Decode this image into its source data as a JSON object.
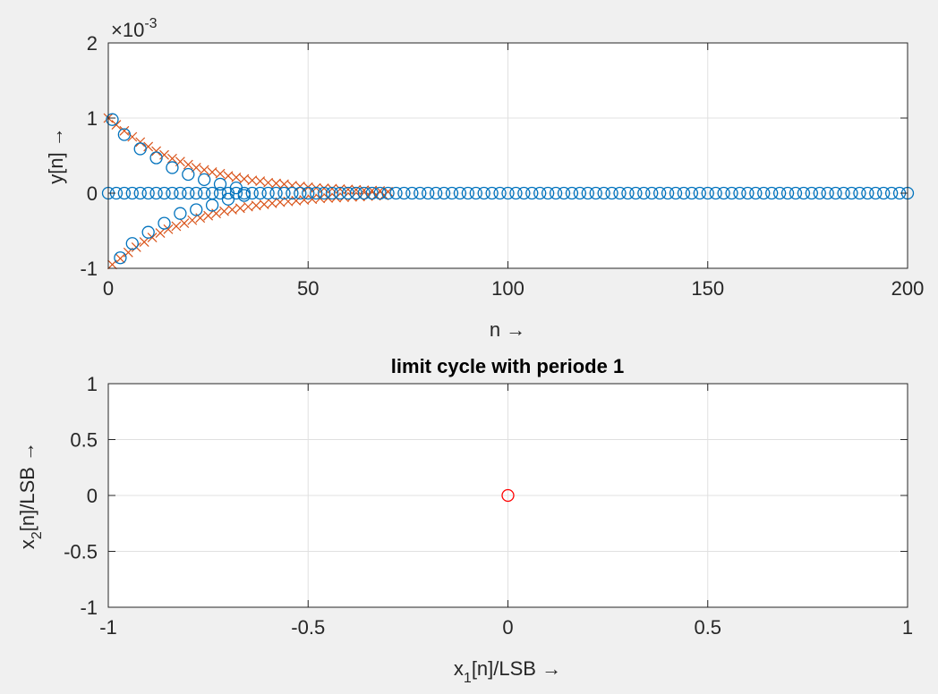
{
  "colors": {
    "background": "#f0f0f0",
    "axes": "#ffffff",
    "grid": "#e0e0e0",
    "axis": "#262626",
    "series_x": "#d95319",
    "series_o": "#0072bd",
    "limit_point": "#ff0000"
  },
  "chart_data": [
    {
      "type": "scatter",
      "title": "",
      "xlabel": "n →",
      "ylabel": "y[n] →",
      "y_exponent_label": "×10",
      "y_exponent": "-3",
      "xlim": [
        0,
        200
      ],
      "ylim": [
        -1,
        2
      ],
      "xticks": [
        0,
        50,
        100,
        150,
        200
      ],
      "xtick_labels": [
        "0",
        "50",
        "100",
        "150",
        "200"
      ],
      "yticks": [
        -1,
        0,
        1,
        2
      ],
      "ytick_labels": [
        "-1",
        "0",
        "1",
        "2"
      ],
      "y_scale_factor": 0.001,
      "grid": true,
      "legend": "none",
      "series": [
        {
          "marker": "x",
          "color": "#d95319",
          "description": "alternating-sign decaying sequence (theoretical)",
          "x": [
            0,
            2,
            4,
            6,
            8,
            10,
            12,
            14,
            16,
            18,
            20,
            22,
            24,
            26,
            28,
            30,
            32,
            34,
            36,
            38,
            40,
            42,
            44,
            46,
            48,
            50,
            52,
            54,
            56,
            58,
            60,
            62,
            64,
            66,
            68,
            70,
            1,
            3,
            5,
            7,
            9,
            11,
            13,
            15,
            17,
            19,
            21,
            23,
            25,
            27,
            29,
            31,
            33,
            35,
            37,
            39,
            41,
            43,
            45,
            47,
            49,
            51,
            53,
            55,
            57,
            59,
            61,
            63,
            65,
            67,
            69
          ],
          "y": [
            1.0,
            0.91,
            0.83,
            0.75,
            0.68,
            0.62,
            0.56,
            0.51,
            0.46,
            0.42,
            0.38,
            0.34,
            0.31,
            0.28,
            0.26,
            0.23,
            0.21,
            0.19,
            0.17,
            0.16,
            0.14,
            0.13,
            0.12,
            0.1,
            0.09,
            0.08,
            0.07,
            0.065,
            0.06,
            0.055,
            0.05,
            0.045,
            0.04,
            0.035,
            0.03,
            0.02,
            -0.95,
            -0.87,
            -0.79,
            -0.72,
            -0.65,
            -0.59,
            -0.53,
            -0.48,
            -0.44,
            -0.4,
            -0.36,
            -0.33,
            -0.3,
            -0.27,
            -0.24,
            -0.22,
            -0.2,
            -0.18,
            -0.165,
            -0.15,
            -0.135,
            -0.12,
            -0.11,
            -0.1,
            -0.09,
            -0.08,
            -0.07,
            -0.065,
            -0.06,
            -0.055,
            -0.05,
            -0.045,
            -0.04,
            -0.035,
            -0.03
          ]
        },
        {
          "marker": "o",
          "color": "#0072bd",
          "description": "quantized output with zero samples",
          "x": [
            0,
            2,
            4,
            6,
            8,
            10,
            12,
            14,
            16,
            18,
            20,
            22,
            24,
            26,
            28,
            30,
            32,
            34,
            36,
            38,
            40,
            42,
            44,
            46,
            48,
            50,
            52,
            54,
            56,
            58,
            60,
            62,
            64,
            66,
            68,
            70,
            72,
            74,
            76,
            78,
            80,
            82,
            84,
            86,
            88,
            90,
            92,
            94,
            96,
            98,
            100,
            102,
            104,
            106,
            108,
            110,
            112,
            114,
            116,
            118,
            120,
            122,
            124,
            126,
            128,
            130,
            132,
            134,
            136,
            138,
            140,
            142,
            144,
            146,
            148,
            150,
            152,
            154,
            156,
            158,
            160,
            162,
            164,
            166,
            168,
            170,
            172,
            174,
            176,
            178,
            180,
            182,
            184,
            186,
            188,
            190,
            192,
            194,
            196,
            198,
            200,
            1,
            4,
            8,
            12,
            16,
            20,
            24,
            28,
            32,
            3,
            6,
            10,
            14,
            18,
            22,
            26,
            30,
            34
          ],
          "y": [
            0,
            0,
            0,
            0,
            0,
            0,
            0,
            0,
            0,
            0,
            0,
            0,
            0,
            0,
            0,
            0,
            0,
            0,
            0,
            0,
            0,
            0,
            0,
            0,
            0,
            0,
            0,
            0,
            0,
            0,
            0,
            0,
            0,
            0,
            0,
            0,
            0,
            0,
            0,
            0,
            0,
            0,
            0,
            0,
            0,
            0,
            0,
            0,
            0,
            0,
            0,
            0,
            0,
            0,
            0,
            0,
            0,
            0,
            0,
            0,
            0,
            0,
            0,
            0,
            0,
            0,
            0,
            0,
            0,
            0,
            0,
            0,
            0,
            0,
            0,
            0,
            0,
            0,
            0,
            0,
            0,
            0,
            0,
            0,
            0,
            0,
            0,
            0,
            0,
            0,
            0,
            0,
            0,
            0,
            0,
            0,
            0,
            0,
            0,
            0,
            0,
            0.98,
            0.78,
            0.59,
            0.47,
            0.34,
            0.25,
            0.18,
            0.12,
            0.07,
            -0.86,
            -0.67,
            -0.52,
            -0.4,
            -0.27,
            -0.22,
            -0.16,
            -0.08,
            -0.03
          ]
        }
      ]
    },
    {
      "type": "scatter",
      "title": "limit cycle with periode 1",
      "xlabel_main": "x",
      "xlabel_sub": "1",
      "xlabel_rest": "[n]/LSB →",
      "ylabel_main": "x",
      "ylabel_sub": "2",
      "ylabel_rest": "[n]/LSB →",
      "xlim": [
        -1,
        1
      ],
      "ylim": [
        -1,
        1
      ],
      "xticks": [
        -1,
        -0.5,
        0,
        0.5,
        1
      ],
      "xtick_labels": [
        "-1",
        "-0.5",
        "0",
        "0.5",
        "1"
      ],
      "yticks": [
        -1,
        -0.5,
        0,
        0.5,
        1
      ],
      "ytick_labels": [
        "-1",
        "-0.5",
        "0",
        "0.5",
        "1"
      ],
      "grid": true,
      "legend": "none",
      "series": [
        {
          "marker": "o",
          "color": "#ff0000",
          "x": [
            0
          ],
          "y": [
            0
          ]
        }
      ]
    }
  ]
}
